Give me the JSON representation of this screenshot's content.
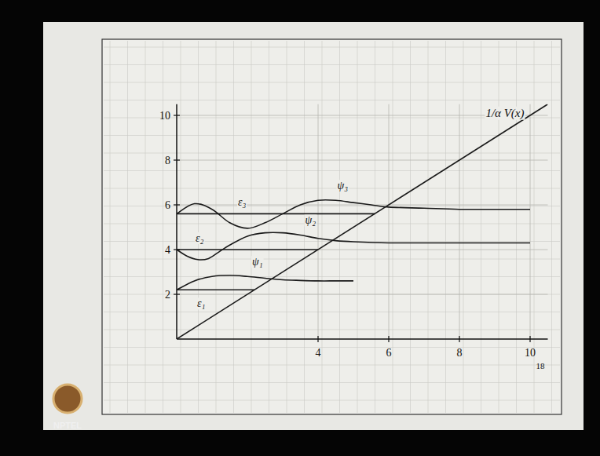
{
  "chart_data": {
    "type": "line",
    "xlim": [
      0,
      10.5
    ],
    "ylim": [
      0,
      10.5
    ],
    "xticks": [
      4,
      6,
      8,
      10
    ],
    "yticks": [
      2,
      4,
      6,
      8,
      10
    ],
    "grid": true,
    "color": "#1a1a1a",
    "series": [
      {
        "name": "1/α V(x)",
        "x": [
          0,
          10.5
        ],
        "values": [
          0,
          10.5
        ]
      },
      {
        "name": "ε₁",
        "x": [
          0,
          2.2
        ],
        "values": [
          2.2,
          2.2
        ]
      },
      {
        "name": "ψ₁",
        "x": [
          0,
          0.5,
          1,
          1.5,
          2,
          2.5,
          3,
          3.5,
          4,
          4.5,
          5
        ],
        "values": [
          2.2,
          2.6,
          2.8,
          2.85,
          2.8,
          2.72,
          2.65,
          2.62,
          2.6,
          2.6,
          2.6
        ]
      },
      {
        "name": "ε₂",
        "x": [
          0,
          4.0
        ],
        "values": [
          4.0,
          4.0
        ]
      },
      {
        "name": "ψ₂",
        "x": [
          0,
          0.3,
          0.6,
          0.9,
          1.2,
          1.5,
          2,
          2.5,
          3,
          3.5,
          4,
          4.5,
          5,
          6,
          7,
          8,
          9,
          10
        ],
        "values": [
          4.0,
          3.7,
          3.55,
          3.6,
          3.9,
          4.2,
          4.6,
          4.75,
          4.75,
          4.65,
          4.5,
          4.4,
          4.35,
          4.3,
          4.3,
          4.3,
          4.3,
          4.3
        ]
      },
      {
        "name": "ε₃",
        "x": [
          0,
          5.6
        ],
        "values": [
          5.6,
          5.6
        ]
      },
      {
        "name": "ψ₃",
        "x": [
          0,
          0.5,
          1,
          1.5,
          2,
          2.5,
          3,
          3.5,
          4,
          4.5,
          5,
          5.5,
          6,
          7,
          8,
          9,
          10
        ],
        "values": [
          5.6,
          6.05,
          5.8,
          5.2,
          4.95,
          5.2,
          5.6,
          6.0,
          6.2,
          6.2,
          6.1,
          6.0,
          5.9,
          5.85,
          5.8,
          5.8,
          5.8
        ]
      }
    ]
  },
  "page": {
    "number": "18",
    "logo": "NPTEL"
  }
}
